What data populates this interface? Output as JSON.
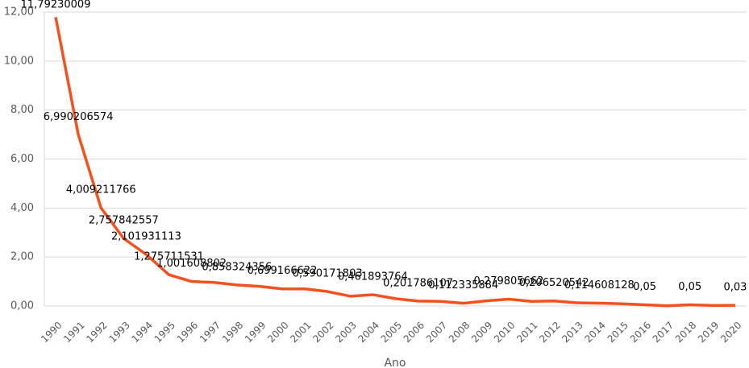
{
  "chart_data": {
    "type": "line",
    "x_label": "Ano",
    "categories": [
      "1990",
      "1991",
      "1992",
      "1993",
      "1994",
      "1995",
      "1996",
      "1997",
      "1998",
      "1999",
      "2000",
      "2001",
      "2002",
      "2003",
      "2004",
      "2005",
      "2006",
      "2007",
      "2008",
      "2009",
      "2010",
      "2011",
      "2012",
      "2013",
      "2014",
      "2015",
      "2016",
      "2017",
      "2018",
      "2019",
      "2020"
    ],
    "values": [
      11.79230009,
      6.990206574,
      4.009211766,
      2.757842557,
      2.101931113,
      1.275711531,
      1.001608802,
      0.96,
      0.858324356,
      0.8,
      0.699166622,
      0.7,
      0.590171803,
      0.4,
      0.461893764,
      0.3,
      0.201786107,
      0.19,
      0.112335884,
      0.21,
      0.279805662,
      0.19,
      0.206520542,
      0.13,
      0.114608128,
      0.09,
      0.05,
      0.01,
      0.05,
      0.02,
      0.03
    ],
    "value_labels": [
      "11,79230009",
      "6,990206574",
      "4,009211766",
      "2,757842557",
      "2,101931113",
      "1,275711531",
      "1,001608802",
      null,
      "0,858324356",
      null,
      "0,699166622",
      null,
      "0,590171803",
      null,
      "0,461893764",
      null,
      "0,201786107",
      null,
      "0,112335884",
      null,
      "0,279805662",
      null,
      "0,206520542",
      null,
      "0,114608128",
      null,
      "0,05",
      null,
      "0,05",
      null,
      "0,03"
    ],
    "color": "#f4511e",
    "ylim": [
      0,
      12
    ],
    "yticks": [
      {
        "value": 0,
        "label": "0,00"
      },
      {
        "value": 2,
        "label": "2,00"
      },
      {
        "value": 4,
        "label": "4,00"
      },
      {
        "value": 6,
        "label": "6,00"
      },
      {
        "value": 8,
        "label": "8,00"
      },
      {
        "value": 10,
        "label": "10,00"
      },
      {
        "value": 12,
        "label": "12,00"
      }
    ],
    "grid": true
  }
}
